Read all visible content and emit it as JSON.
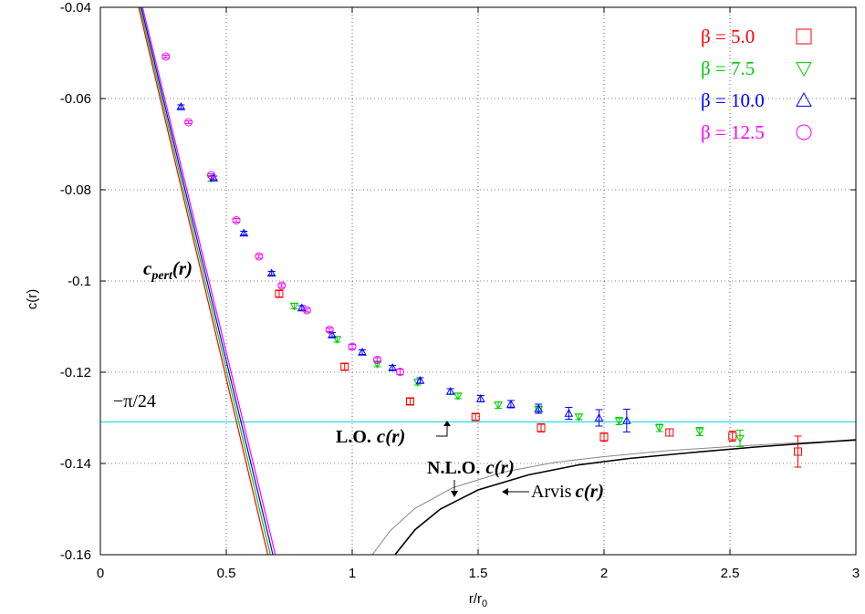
{
  "chart_data": {
    "type": "scatter",
    "xlabel_main": "r/r",
    "xlabel_sub": "0",
    "ylabel": "c(r)",
    "xlim": [
      0,
      3
    ],
    "ylim": [
      -0.16,
      -0.04
    ],
    "xticks": [
      0,
      0.5,
      1,
      1.5,
      2,
      2.5,
      3
    ],
    "xtick_labels": [
      "0",
      "0.5",
      "1",
      "1.5",
      "2",
      "2.5",
      "3"
    ],
    "yticks": [
      -0.16,
      -0.14,
      -0.12,
      -0.1,
      -0.08,
      -0.06,
      -0.04
    ],
    "ytick_labels": [
      "-0.16",
      "-0.14",
      "-0.12",
      "-0.1",
      "-0.08",
      "-0.06",
      "-0.04"
    ],
    "legend_position": "top-right",
    "series": [
      {
        "name": "β = 5.0",
        "symbol": "□",
        "marker": "square",
        "color": "#ff0000",
        "points": [
          {
            "x": 0.71,
            "y": -0.1028,
            "err": 0.0007
          },
          {
            "x": 0.97,
            "y": -0.1188,
            "err": 0.0007
          },
          {
            "x": 1.23,
            "y": -0.1264,
            "err": 0.0007
          },
          {
            "x": 1.49,
            "y": -0.1298,
            "err": 0.0007
          },
          {
            "x": 1.75,
            "y": -0.1322,
            "err": 0.0009
          },
          {
            "x": 2.0,
            "y": -0.1342,
            "err": 0.0009
          },
          {
            "x": 2.26,
            "y": -0.1332,
            "err": 0.0008
          },
          {
            "x": 2.51,
            "y": -0.134,
            "err": 0.0011
          },
          {
            "x": 2.77,
            "y": -0.1374,
            "err": 0.0034
          }
        ]
      },
      {
        "name": "β = 7.5",
        "symbol": "▽",
        "marker": "triangle-down",
        "color": "#00cc00",
        "points": [
          {
            "x": 0.44,
            "y": -0.0775,
            "err": 0.0006
          },
          {
            "x": 0.77,
            "y": -0.1055,
            "err": 0.0006
          },
          {
            "x": 0.94,
            "y": -0.1128,
            "err": 0.0006
          },
          {
            "x": 1.1,
            "y": -0.1182,
            "err": 0.0006
          },
          {
            "x": 1.26,
            "y": -0.1222,
            "err": 0.0006
          },
          {
            "x": 1.42,
            "y": -0.1252,
            "err": 0.0006
          },
          {
            "x": 1.58,
            "y": -0.1272,
            "err": 0.0007
          },
          {
            "x": 1.74,
            "y": -0.1282,
            "err": 0.0008
          },
          {
            "x": 1.9,
            "y": -0.1298,
            "err": 0.0006
          },
          {
            "x": 2.06,
            "y": -0.1307,
            "err": 0.0008
          },
          {
            "x": 2.22,
            "y": -0.1322,
            "err": 0.0008
          },
          {
            "x": 2.38,
            "y": -0.133,
            "err": 0.0009
          },
          {
            "x": 2.54,
            "y": -0.1345,
            "err": 0.0018
          }
        ]
      },
      {
        "name": "β = 10.0",
        "symbol": "△",
        "marker": "triangle-up",
        "color": "#0000ff",
        "points": [
          {
            "x": 0.32,
            "y": -0.0618,
            "err": 0.0004
          },
          {
            "x": 0.45,
            "y": -0.0774,
            "err": 0.0004
          },
          {
            "x": 0.57,
            "y": -0.0895,
            "err": 0.0004
          },
          {
            "x": 0.68,
            "y": -0.0983,
            "err": 0.0004
          },
          {
            "x": 0.8,
            "y": -0.1059,
            "err": 0.0005
          },
          {
            "x": 0.92,
            "y": -0.1118,
            "err": 0.0005
          },
          {
            "x": 1.04,
            "y": -0.1156,
            "err": 0.0005
          },
          {
            "x": 1.16,
            "y": -0.119,
            "err": 0.0005
          },
          {
            "x": 1.27,
            "y": -0.1218,
            "err": 0.0006
          },
          {
            "x": 1.39,
            "y": -0.1242,
            "err": 0.0006
          },
          {
            "x": 1.51,
            "y": -0.1258,
            "err": 0.0007
          },
          {
            "x": 1.63,
            "y": -0.127,
            "err": 0.0008
          },
          {
            "x": 1.74,
            "y": -0.128,
            "err": 0.001
          },
          {
            "x": 1.86,
            "y": -0.129,
            "err": 0.0013
          },
          {
            "x": 1.98,
            "y": -0.13,
            "err": 0.0018
          },
          {
            "x": 2.09,
            "y": -0.1306,
            "err": 0.0025
          }
        ]
      },
      {
        "name": "β = 12.5",
        "symbol": "○",
        "marker": "circle",
        "color": "#ff00ff",
        "points": [
          {
            "x": 0.26,
            "y": -0.0508,
            "err": 0.0003
          },
          {
            "x": 0.35,
            "y": -0.0652,
            "err": 0.0003
          },
          {
            "x": 0.44,
            "y": -0.0768,
            "err": 0.0003
          },
          {
            "x": 0.54,
            "y": -0.0867,
            "err": 0.0004
          },
          {
            "x": 0.63,
            "y": -0.0946,
            "err": 0.0004
          },
          {
            "x": 0.72,
            "y": -0.101,
            "err": 0.0004
          },
          {
            "x": 0.82,
            "y": -0.1064,
            "err": 0.0004
          },
          {
            "x": 0.91,
            "y": -0.1107,
            "err": 0.0004
          },
          {
            "x": 1.0,
            "y": -0.1144,
            "err": 0.0005
          },
          {
            "x": 1.1,
            "y": -0.1173,
            "err": 0.0005
          },
          {
            "x": 1.19,
            "y": -0.1199,
            "err": 0.0006
          }
        ]
      }
    ],
    "reference_line": {
      "label": "−π/24",
      "y": -0.1309,
      "color": "#00e0e0"
    },
    "curves": {
      "c_pert": [
        {
          "color": "#ff0000",
          "x": [
            0.135,
            0.665
          ],
          "y": [
            -0.036,
            -0.16
          ]
        },
        {
          "color": "#00cc00",
          "x": [
            0.14,
            0.675
          ],
          "y": [
            -0.036,
            -0.16
          ]
        },
        {
          "color": "#0000ff",
          "x": [
            0.145,
            0.685
          ],
          "y": [
            -0.036,
            -0.16
          ]
        },
        {
          "color": "#ff00ff",
          "x": [
            0.15,
            0.695
          ],
          "y": [
            -0.036,
            -0.16
          ]
        }
      ],
      "nlo": {
        "color": "#888888",
        "x": [
          1.08,
          1.15,
          1.25,
          1.4,
          1.6,
          1.8,
          2.0,
          2.25,
          2.5,
          2.75,
          3.0
        ],
        "y": [
          -0.16,
          -0.1548,
          -0.1498,
          -0.1453,
          -0.1419,
          -0.1398,
          -0.1385,
          -0.1372,
          -0.1363,
          -0.1355,
          -0.135
        ]
      },
      "arvis": {
        "color": "#000000",
        "x": [
          1.17,
          1.25,
          1.35,
          1.5,
          1.7,
          1.9,
          2.1,
          2.35,
          2.6,
          2.8,
          3.0
        ],
        "y": [
          -0.16,
          -0.1545,
          -0.15,
          -0.1458,
          -0.1425,
          -0.1403,
          -0.1389,
          -0.1376,
          -0.1364,
          -0.1356,
          -0.1348
        ]
      }
    },
    "annotations": {
      "pi_label": "−π/24",
      "cpert_main": "c",
      "cpert_sub": "pert",
      "cpert_tail": "(r)",
      "lo_prefix": "L.O.",
      "nlo_prefix": "N.L.O.",
      "arvis_prefix": "Arvis",
      "cr": "c(r)"
    }
  }
}
